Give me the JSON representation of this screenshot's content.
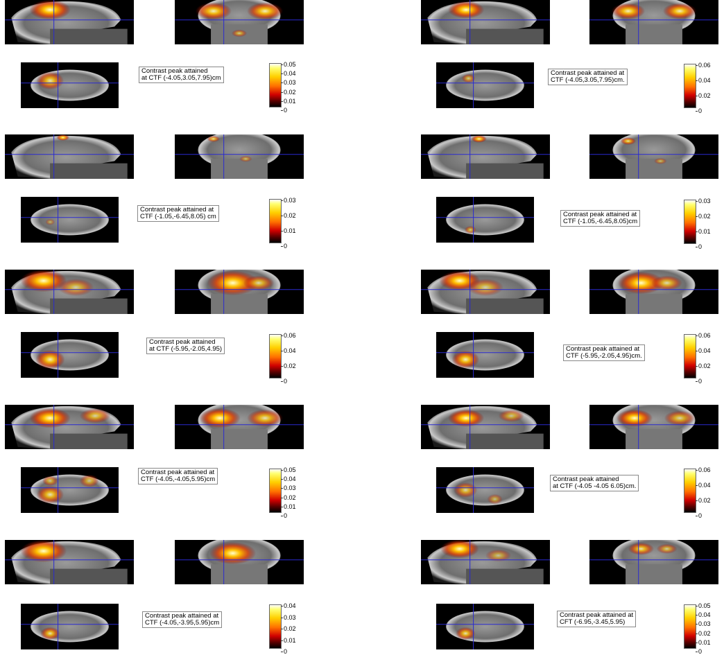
{
  "panels": [
    {
      "label": "Contrast peak attained\nat CTF (-4.05,3.05,7.95)cm",
      "colorbar": [
        "0.05",
        "0.04",
        "0.03",
        "0.02",
        "0.01",
        "0"
      ]
    },
    {
      "label": "Contrast peak attained at\nCTF (-4.05,3.05,7.95)cm.",
      "colorbar": [
        "0.06",
        "0.04",
        "0.02",
        "0"
      ]
    },
    {
      "label": "Contrast peak attained at\nCTF (-1.05,-6.45,8.05) cm",
      "colorbar": [
        "0.03",
        "0.02",
        "0.01",
        "0"
      ]
    },
    {
      "label": "Contrast peak attained at\nCTF (-1.05,-6.45,8.05)cm",
      "colorbar": [
        "0.03",
        "0.02",
        "0.01",
        "0"
      ]
    },
    {
      "label": "Contrast peak attained\nat CTF (-5.95,-2.05,4.95)",
      "colorbar": [
        "0.06",
        "0.04",
        "0.02",
        "0"
      ]
    },
    {
      "label": "Contrast peak attained at\nCTF (-5.95,-2.05,4.95)cm.",
      "colorbar": [
        "0.06",
        "0.04",
        "0.02",
        "0"
      ]
    },
    {
      "label": "Contrast peak attained at\nCTF (-4.05,-4.05,5.95)cm",
      "colorbar": [
        "0.05",
        "0.04",
        "0.03",
        "0.02",
        "0.01",
        "0"
      ]
    },
    {
      "label": "Contrast peak attained\nat CTF (-4.05 -4.05 6.05)cm.",
      "colorbar": [
        "0.06",
        "0.04",
        "0.02",
        "0"
      ]
    },
    {
      "label": "Contrast peak attained at\nCTF (-4.05,-3.95,5.95)cm",
      "colorbar": [
        "0.04",
        "0.03",
        "0.02",
        "0.01",
        "0"
      ]
    },
    {
      "label": "Contrast peak attained at\nCFT (-6.95,-3.45,5.95)",
      "colorbar": [
        "0.05",
        "0.04",
        "0.03",
        "0.02",
        "0.01",
        "0"
      ]
    }
  ]
}
